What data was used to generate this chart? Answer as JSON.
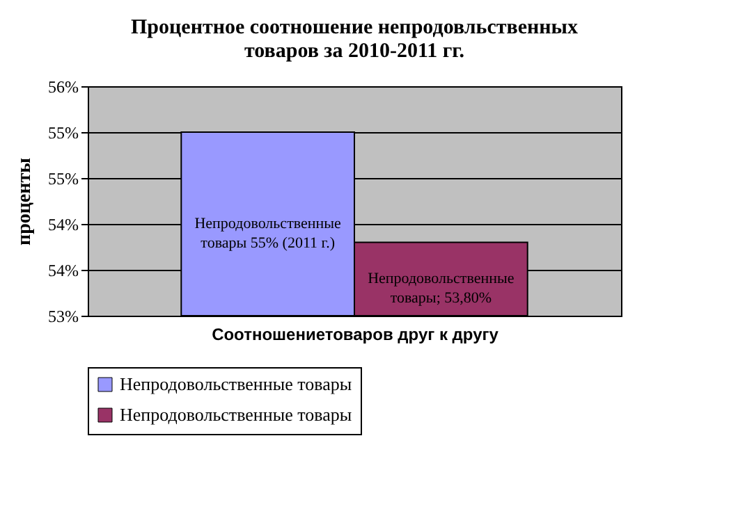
{
  "chart_data": {
    "type": "bar",
    "title": [
      "Процентное соотношение непродовльственных",
      "товаров за 2010-2011 гг."
    ],
    "xlabel": "Соотношениетоваров друг к другу",
    "ylabel": "проценты",
    "categories": [
      null
    ],
    "series": [
      {
        "name": "Непродовольственные товары",
        "color": "#9999ff",
        "values": [
          55
        ],
        "value_labels": [
          "Непродовольственные товары 55% (2011 г.)"
        ]
      },
      {
        "name": "Непродовольственные товары",
        "color": "#993366",
        "values": [
          53.8
        ],
        "value_labels": [
          "Непродовольственные товары; 53,80%"
        ]
      }
    ],
    "ylim": [
      53,
      55.5
    ],
    "yticks": [
      {
        "value": 53,
        "label": "53%"
      },
      {
        "value": 53.5,
        "label": "54%"
      },
      {
        "value": 54,
        "label": "54%"
      },
      {
        "value": 54.5,
        "label": "55%"
      },
      {
        "value": 55,
        "label": "55%"
      },
      {
        "value": 55.5,
        "label": "56%"
      }
    ],
    "grid": "y",
    "legend": "bottom"
  }
}
